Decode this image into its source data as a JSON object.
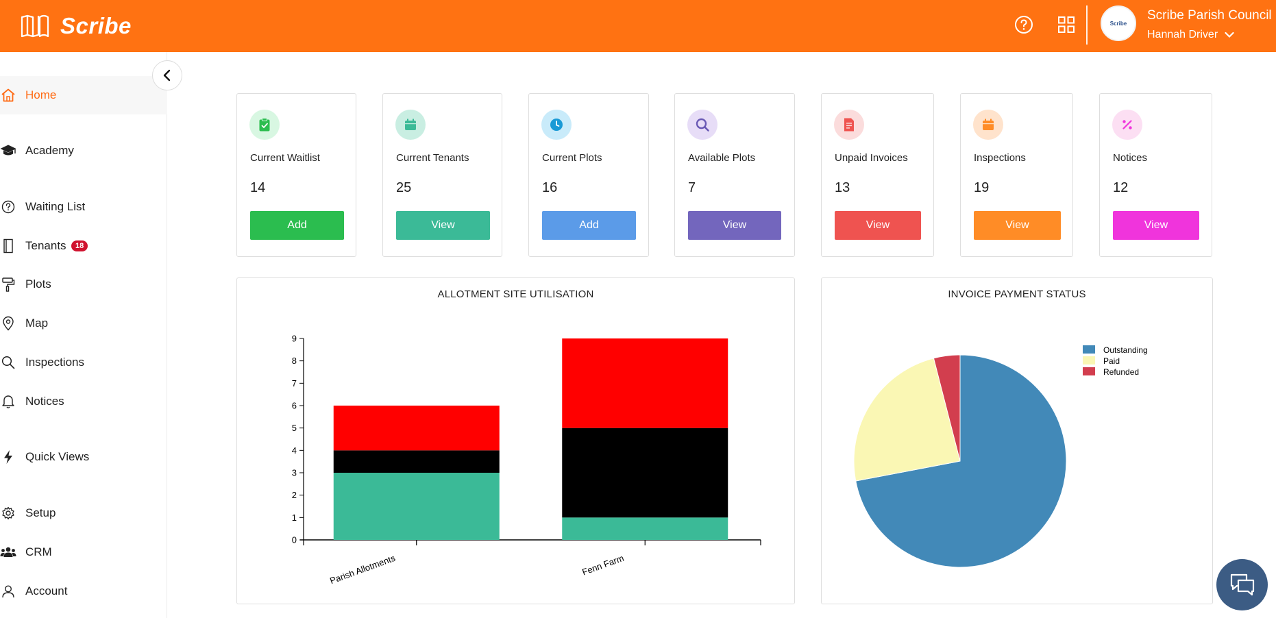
{
  "header": {
    "logo_text": "Scribe",
    "council_name": "Scribe Parish Council",
    "user_name": "Hannah Driver",
    "avatar_text": "Scribe",
    "help_icon": "question-circle-icon",
    "apps_icon": "grid-icon",
    "brand_color": "#ff7212"
  },
  "sidebar": {
    "items": [
      {
        "label": "Home",
        "icon": "home-icon",
        "active": true
      },
      {
        "label": "Academy",
        "icon": "graduation-cap-icon"
      },
      {
        "label": "Waiting List",
        "icon": "question-circle-icon"
      },
      {
        "label": "Tenants",
        "icon": "book-icon",
        "badge": "18"
      },
      {
        "label": "Plots",
        "icon": "paint-roller-icon"
      },
      {
        "label": "Map",
        "icon": "map-pin-icon"
      },
      {
        "label": "Inspections",
        "icon": "search-icon"
      },
      {
        "label": "Notices",
        "icon": "bell-icon"
      },
      {
        "label": "Quick Views",
        "icon": "bolt-icon"
      },
      {
        "label": "Setup",
        "icon": "gear-icon"
      },
      {
        "label": "CRM",
        "icon": "users-icon"
      },
      {
        "label": "Account",
        "icon": "user-icon"
      }
    ]
  },
  "cards": [
    {
      "title": "Current Waitlist",
      "value": "14",
      "button": "Add",
      "color": "#2bbd4f",
      "icon_bg": "#d8f7e2",
      "icon": "clipboard-check-icon"
    },
    {
      "title": "Current Tenants",
      "value": "25",
      "button": "View",
      "color": "#3bba97",
      "icon_bg": "#c9eee2",
      "icon": "calendar-icon"
    },
    {
      "title": "Current Plots",
      "value": "16",
      "button": "Add",
      "color": "#5b9be8",
      "icon_bg": "#c9ebfa",
      "icon": "clock-icon"
    },
    {
      "title": "Available Plots",
      "value": "7",
      "button": "View",
      "color": "#7366bd",
      "icon_bg": "#e7ddf7",
      "icon": "search-icon"
    },
    {
      "title": "Unpaid Invoices",
      "value": "13",
      "button": "View",
      "color": "#ef5350",
      "icon_bg": "#fbdcdc",
      "icon": "invoice-icon"
    },
    {
      "title": "Inspections",
      "value": "19",
      "button": "View",
      "color": "#ff8c26",
      "icon_bg": "#ffe3cc",
      "icon": "calendar-icon"
    },
    {
      "title": "Notices",
      "value": "12",
      "button": "View",
      "color": "#f034dc",
      "icon_bg": "#fcdff3",
      "icon": "percent-icon"
    }
  ],
  "charts": {
    "utilisation_title": "ALLOTMENT SITE UTILISATION",
    "payment_title": "INVOICE PAYMENT STATUS"
  },
  "chart_data": [
    {
      "type": "bar",
      "title": "ALLOTMENT SITE UTILISATION",
      "stacked": true,
      "categories": [
        "Parish Allotments",
        "Fenn Farm"
      ],
      "series": [
        {
          "color": "#3bba97",
          "values": [
            3,
            1
          ]
        },
        {
          "color": "#000000",
          "values": [
            1,
            4
          ]
        },
        {
          "color": "#ff0000",
          "values": [
            2,
            4
          ]
        }
      ],
      "ylim": [
        0,
        9
      ],
      "yticks": [
        "0",
        "1",
        "2",
        "3",
        "4",
        "5",
        "6",
        "7",
        "8",
        "9"
      ],
      "xlabel": "",
      "ylabel": "",
      "grid": false
    },
    {
      "type": "pie",
      "title": "INVOICE PAYMENT STATUS",
      "labels": [
        "Outstanding",
        "Paid",
        "Refunded"
      ],
      "values": [
        72,
        24,
        4
      ],
      "colors": [
        "#4289b8",
        "#faf7b4",
        "#d23e4e"
      ],
      "legend": "top-right"
    }
  ],
  "chat": {
    "icon": "chat-bubbles-icon"
  }
}
